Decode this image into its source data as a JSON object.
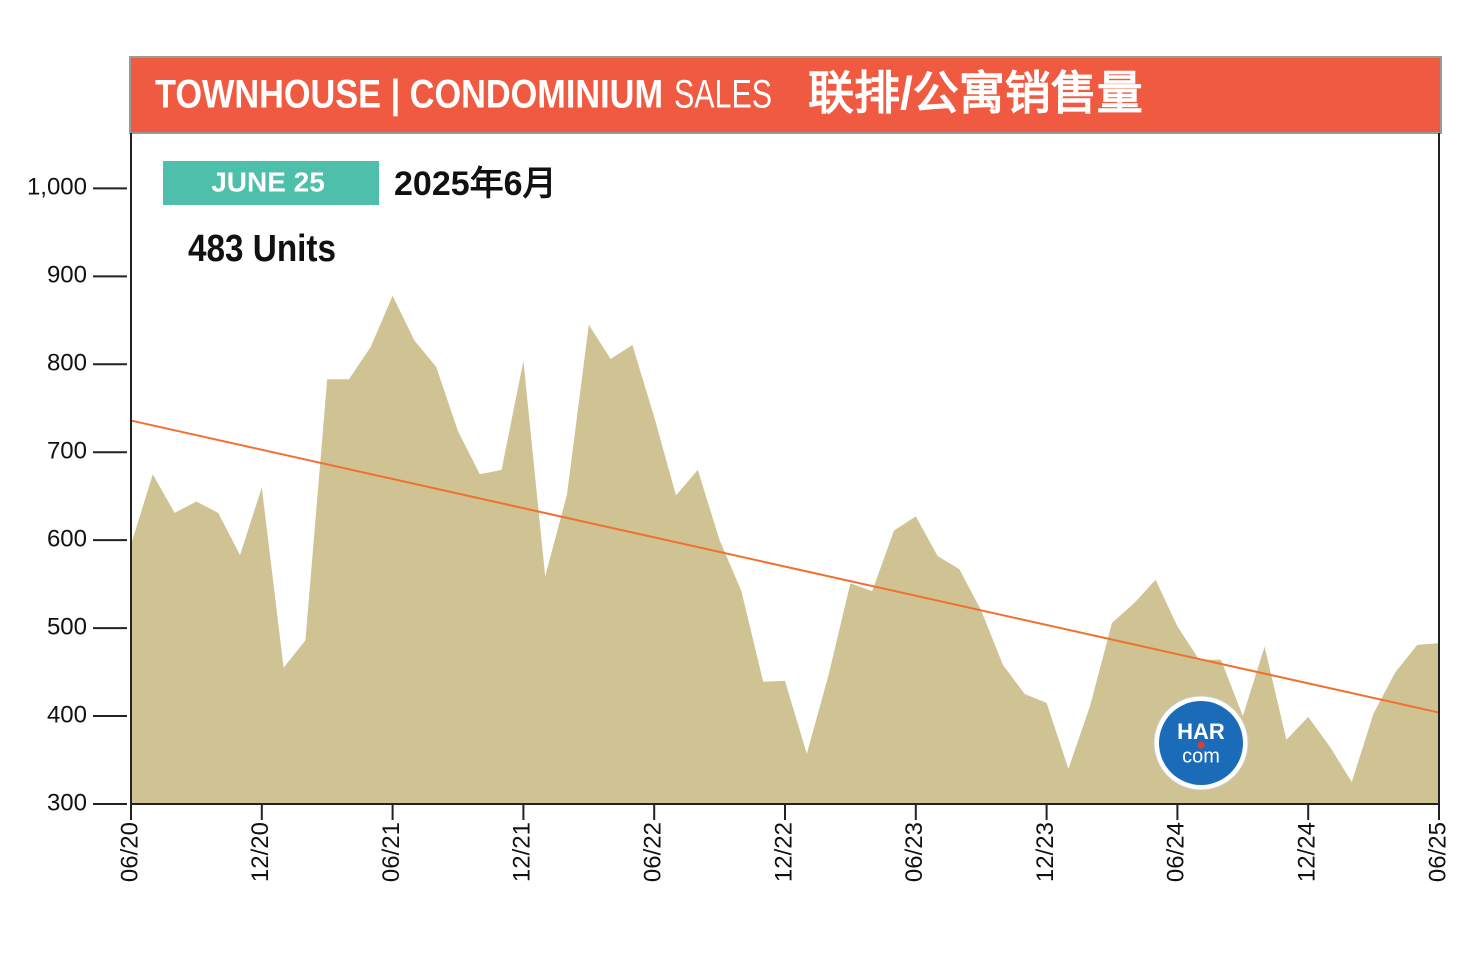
{
  "chart_data": {
    "type": "area",
    "title": "TOWNHOUSE | CONDOMINIUM",
    "title_suffix": "SALES",
    "title_cn": "联排/公寓销售量",
    "badge": "JUNE 25",
    "badge_cn": "2025年6月",
    "annotation": "483 Units",
    "logo": {
      "line1": "HAR",
      "line2": "com"
    },
    "categories": [
      "06/20",
      null,
      null,
      null,
      null,
      null,
      "12/20",
      null,
      null,
      null,
      null,
      null,
      "06/21",
      null,
      null,
      null,
      null,
      null,
      "12/21",
      null,
      null,
      null,
      null,
      null,
      "06/22",
      null,
      null,
      null,
      null,
      null,
      "12/22",
      null,
      null,
      null,
      null,
      null,
      "06/23",
      null,
      null,
      null,
      null,
      null,
      "12/23",
      null,
      null,
      null,
      null,
      null,
      "06/24",
      null,
      null,
      null,
      null,
      null,
      "12/24",
      null,
      null,
      null,
      null,
      null,
      "06/25"
    ],
    "values": [
      595,
      675,
      631,
      644,
      631,
      583,
      660,
      455,
      486,
      783,
      783,
      820,
      878,
      827,
      797,
      724,
      675,
      680,
      804,
      559,
      652,
      845,
      806,
      822,
      740,
      651,
      680,
      600,
      542,
      439,
      440,
      357,
      447,
      551,
      542,
      611,
      627,
      582,
      567,
      520,
      458,
      425,
      415,
      340,
      412,
      506,
      528,
      555,
      502,
      464,
      464,
      400,
      479,
      373,
      399,
      365,
      325,
      403,
      450,
      481,
      483
    ],
    "color": "#cfc394",
    "trendline": {
      "color": "#f07030",
      "values": [
        736,
        404
      ]
    },
    "ylim": [
      300,
      1063
    ],
    "yticks": [
      300,
      400,
      500,
      600,
      700,
      800,
      900,
      {
        "value": 1000,
        "label": "1,000"
      }
    ]
  }
}
